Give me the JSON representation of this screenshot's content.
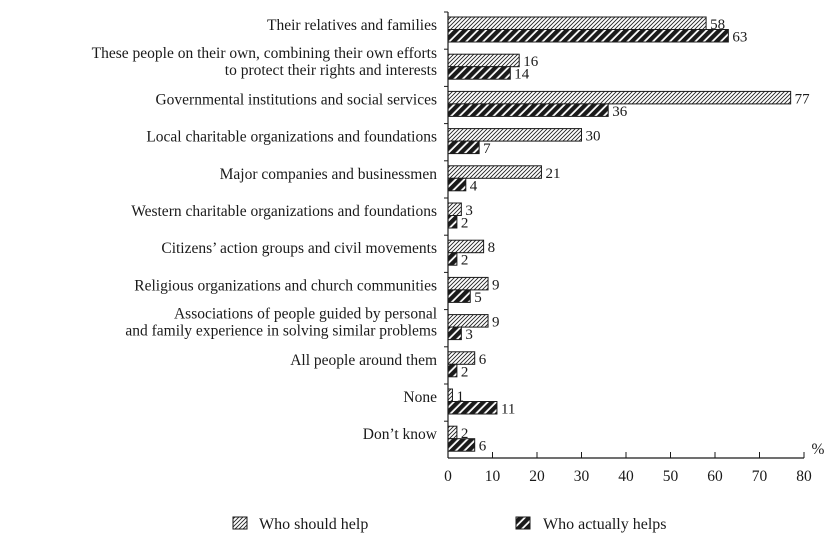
{
  "chart_data": {
    "type": "bar",
    "orientation": "horizontal",
    "title": "",
    "xlabel": "",
    "ylabel": "",
    "unit_label": "%",
    "xlim": [
      0,
      80
    ],
    "x_ticks": [
      0,
      10,
      20,
      30,
      40,
      50,
      60,
      70,
      80
    ],
    "grid": false,
    "legend_position": "bottom",
    "categories": [
      [
        "Their relatives and families"
      ],
      [
        "These people on their own, combining their own efforts",
        "to protect their rights and interests"
      ],
      [
        "Governmental institutions and social services"
      ],
      [
        "Local charitable organizations and foundations"
      ],
      [
        "Major companies and businessmen"
      ],
      [
        "Western charitable organizations and foundations"
      ],
      [
        "Citizens’ action groups and civil movements"
      ],
      [
        "Religious organizations and church communities"
      ],
      [
        "Associations of people guided by personal",
        "and family experience in solving similar problems"
      ],
      [
        "All people around them"
      ],
      [
        "None"
      ],
      [
        "Don’t know"
      ]
    ],
    "series": [
      {
        "name": "Who should help",
        "pattern": "light-diagonal-hatch",
        "color": "#1a1a1a",
        "values": [
          58,
          16,
          77,
          30,
          21,
          3,
          8,
          9,
          9,
          6,
          1,
          2
        ]
      },
      {
        "name": "Who actually helps",
        "pattern": "dense-dark-hatch",
        "color": "#1a1a1a",
        "values": [
          63,
          14,
          36,
          7,
          4,
          2,
          2,
          5,
          3,
          2,
          11,
          6
        ]
      }
    ]
  }
}
